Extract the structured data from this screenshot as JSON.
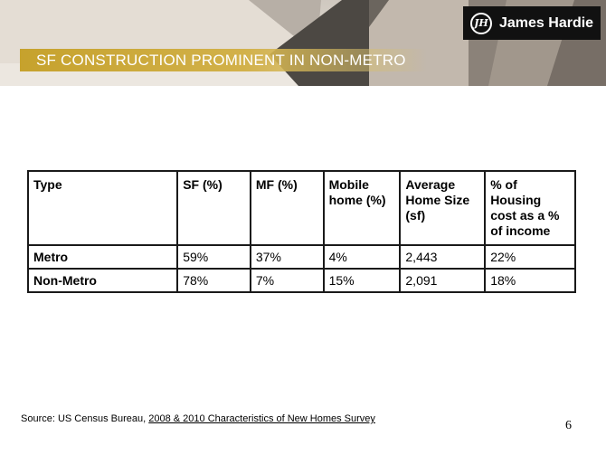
{
  "logo": {
    "mark": "JH",
    "text": "James Hardie"
  },
  "title": "SF CONSTRUCTION PROMINENT IN NON-METRO",
  "table": {
    "headers": [
      "Type",
      "SF (%)",
      "MF (%)",
      "Mobile home (%)",
      "Average Home Size (sf)",
      "% of Housing cost as a % of income"
    ],
    "rows": [
      {
        "type": "Metro",
        "sf": "59%",
        "mf": "37%",
        "mobile": "4%",
        "size": "2,443",
        "cost": "22%"
      },
      {
        "type": "Non-Metro",
        "sf": "78%",
        "mf": "7%",
        "mobile": "15%",
        "size": "2,091",
        "cost": "18%"
      }
    ]
  },
  "source": {
    "prefix": "Source: US Census Bureau, ",
    "link": "2008  & 2010 Characteristics of New Homes Survey"
  },
  "page_number": "6"
}
